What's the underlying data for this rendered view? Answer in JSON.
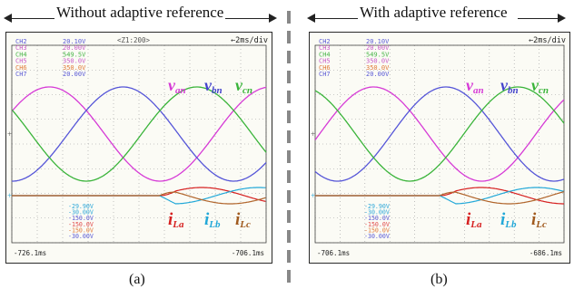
{
  "panels": [
    {
      "heading": "Without adaptive reference",
      "caption": "(a)",
      "top_right": "←2ms/div",
      "top_center": "<Z1:200>",
      "channels": [
        {
          "name": "CH2",
          "value": "20.10V",
          "color": "#5a5ad6"
        },
        {
          "name": "CH3",
          "value": "20.00V",
          "color": "#c85ac8"
        },
        {
          "name": "CH4",
          "value": "549.5V",
          "color": "#47b447"
        },
        {
          "name": "CH5",
          "value": "350.0V",
          "color": "#c85ac8"
        },
        {
          "name": "CH6",
          "value": "350.0V",
          "color": "#e07a3a"
        },
        {
          "name": "CH7",
          "value": "20.00V",
          "color": "#5a5ad6"
        }
      ],
      "lower_values": [
        {
          "value": "-29.90V",
          "color": "#2aa6d8"
        },
        {
          "value": "-30.00V",
          "color": "#2aa6d8"
        },
        {
          "value": "-150.0V",
          "color": "#5a5ad6"
        },
        {
          "value": "-150.0V",
          "color": "#e04a4a"
        },
        {
          "value": "-150.0V",
          "color": "#e07a3a"
        },
        {
          "value": "-30.00V",
          "color": "#5a5ad6"
        }
      ],
      "time_left": "-726.1ms",
      "time_right": "-706.1ms",
      "voltage_labels": [
        {
          "main": "v",
          "sub": "an",
          "color": "#d63ad6"
        },
        {
          "main": "v",
          "sub": "bn",
          "color": "#4444cc"
        },
        {
          "main": "v",
          "sub": "cn",
          "color": "#3ab43a"
        }
      ],
      "current_labels": [
        {
          "main": "i",
          "sub": "La",
          "color": "#d62020"
        },
        {
          "main": "i",
          "sub": "Lb",
          "color": "#22a8d8"
        },
        {
          "main": "i",
          "sub": "Lc",
          "color": "#a05a1e"
        }
      ]
    },
    {
      "heading": "With adaptive reference",
      "caption": "(b)",
      "top_right": "←2ms/div",
      "top_center": "",
      "channels": [
        {
          "name": "CH2",
          "value": "20.10V",
          "color": "#5a5ad6"
        },
        {
          "name": "CH3",
          "value": "20.00V",
          "color": "#c85ac8"
        },
        {
          "name": "CH4",
          "value": "549.5V",
          "color": "#47b447"
        },
        {
          "name": "CH5",
          "value": "350.0V",
          "color": "#c85ac8"
        },
        {
          "name": "CH6",
          "value": "350.0V",
          "color": "#e07a3a"
        },
        {
          "name": "CH7",
          "value": "20.00V",
          "color": "#5a5ad6"
        }
      ],
      "lower_values": [
        {
          "value": "-29.90V",
          "color": "#2aa6d8"
        },
        {
          "value": "-30.00V",
          "color": "#2aa6d8"
        },
        {
          "value": "-150.0V",
          "color": "#5a5ad6"
        },
        {
          "value": "-150.0V",
          "color": "#e04a4a"
        },
        {
          "value": "-150.0V",
          "color": "#e07a3a"
        },
        {
          "value": "-30.00V",
          "color": "#5a5ad6"
        }
      ],
      "time_left": "-706.1ms",
      "time_right": "-686.1ms",
      "voltage_labels": [
        {
          "main": "v",
          "sub": "an",
          "color": "#d63ad6"
        },
        {
          "main": "v",
          "sub": "bn",
          "color": "#4444cc"
        },
        {
          "main": "v",
          "sub": "cn",
          "color": "#3ab43a"
        }
      ],
      "current_labels": [
        {
          "main": "i",
          "sub": "La",
          "color": "#d62020"
        },
        {
          "main": "i",
          "sub": "Lb",
          "color": "#22a8d8"
        },
        {
          "main": "i",
          "sub": "Lc",
          "color": "#a05a1e"
        }
      ]
    }
  ],
  "chart_data": [
    {
      "type": "line",
      "title": "Without adaptive reference",
      "x_range_ms": [
        -726.1,
        -706.1
      ],
      "grid": true,
      "series": [
        {
          "name": "v_an",
          "color": "#d63ad6",
          "kind": "sinusoid",
          "phase_deg": 0
        },
        {
          "name": "v_bn",
          "color": "#5555d8",
          "kind": "sinusoid",
          "phase_deg": -120
        },
        {
          "name": "v_cn",
          "color": "#3ab43a",
          "kind": "sinusoid",
          "phase_deg": 120
        },
        {
          "name": "i_La",
          "color": "#d62020",
          "kind": "current",
          "start_fraction": 0.58
        },
        {
          "name": "i_Lb",
          "color": "#22a8d8",
          "kind": "current",
          "start_fraction": 0.58
        },
        {
          "name": "i_Lc",
          "color": "#b0642a",
          "kind": "current",
          "start_fraction": 0.58
        }
      ]
    },
    {
      "type": "line",
      "title": "With adaptive reference",
      "x_range_ms": [
        -706.1,
        -686.1
      ],
      "grid": true,
      "series": [
        {
          "name": "v_an",
          "color": "#d63ad6",
          "kind": "sinusoid",
          "phase_deg": 0
        },
        {
          "name": "v_bn",
          "color": "#5555d8",
          "kind": "sinusoid",
          "phase_deg": -120
        },
        {
          "name": "v_cn",
          "color": "#3ab43a",
          "kind": "sinusoid",
          "phase_deg": 120
        },
        {
          "name": "i_La",
          "color": "#d62020",
          "kind": "current",
          "start_fraction": 0.5
        },
        {
          "name": "i_Lb",
          "color": "#22a8d8",
          "kind": "current",
          "start_fraction": 0.5
        },
        {
          "name": "i_Lc",
          "color": "#b0642a",
          "kind": "current",
          "start_fraction": 0.5
        }
      ]
    }
  ]
}
